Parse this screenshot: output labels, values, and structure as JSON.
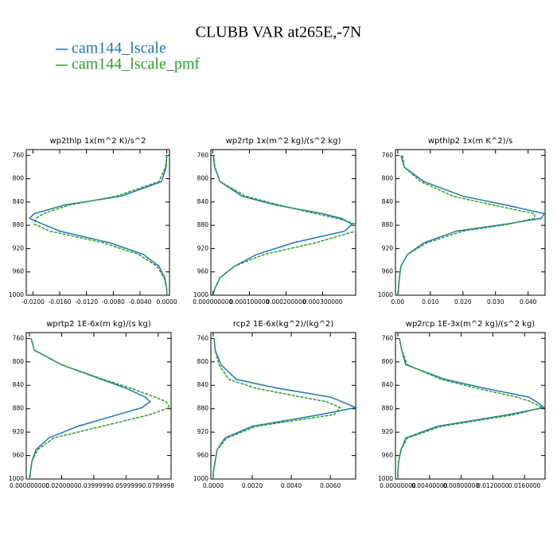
{
  "title": "CLUBB VAR at265E,-7N",
  "chart_data": [
    {
      "type": "line",
      "title": "wp2thlp  1x(m^2 K)/s^2",
      "y": [
        760,
        780,
        805,
        830,
        845,
        860,
        868,
        878,
        890,
        910,
        930,
        950,
        970,
        990,
        1000
      ],
      "series": [
        {
          "name": "cam144_lscale",
          "color": "#1f77b4",
          "values": [
            0,
            -0.0001,
            -0.0008,
            -0.0068,
            -0.0152,
            -0.0198,
            -0.0205,
            -0.0185,
            -0.016,
            -0.0085,
            -0.0035,
            -0.0012,
            -0.0003,
            0,
            0
          ]
        },
        {
          "name": "cam144_lscale_pmf",
          "color": "#2ca02c",
          "values": [
            0,
            -0.0002,
            -0.0012,
            -0.0075,
            -0.0145,
            -0.0185,
            -0.0195,
            -0.0198,
            -0.0175,
            -0.0095,
            -0.0042,
            -0.0015,
            -0.0004,
            0,
            0
          ]
        }
      ],
      "xlim": [
        -0.021,
        0.0004
      ],
      "xticks": [
        {
          "value": -0.02,
          "label": "-0.0200"
        },
        {
          "value": -0.016,
          "label": "-0.0160"
        },
        {
          "value": -0.012,
          "label": "-0.0120"
        },
        {
          "value": -0.008,
          "label": "-0.0080"
        },
        {
          "value": -0.004,
          "label": "-0.0040"
        },
        {
          "value": 0,
          "label": "0.0000"
        }
      ],
      "ylim": [
        1000,
        750
      ],
      "yticks": [
        760,
        800,
        840,
        880,
        920,
        960,
        1000
      ]
    },
    {
      "type": "line",
      "title": "wp2rtp  1x(m^2 kg)/(s^2 kg)",
      "y": [
        760,
        780,
        805,
        830,
        845,
        860,
        868,
        878,
        890,
        910,
        930,
        950,
        970,
        990,
        1000
      ],
      "series": [
        {
          "name": "cam144_lscale",
          "color": "#1f77b4",
          "values": [
            2e-06,
            5e-06,
            2e-05,
            8e-05,
            0.00017,
            0.0003,
            0.00035,
            0.00038,
            0.00036,
            0.00022,
            0.00012,
            6e-05,
            2e-05,
            5e-06,
            1e-06
          ]
        },
        {
          "name": "cam144_lscale_pmf",
          "color": "#2ca02c",
          "values": [
            2e-06,
            6e-06,
            2e-05,
            9e-05,
            0.00018,
            0.00028,
            0.00034,
            0.00039,
            0.00039,
            0.00028,
            0.00014,
            6e-05,
            2e-05,
            5e-06,
            1e-06
          ]
        }
      ],
      "xlim": [
        -5e-06,
        0.00039
      ],
      "xticks": [
        {
          "value": 0,
          "label": "0.000000000"
        },
        {
          "value": 0.0001,
          "label": "0.000100000"
        },
        {
          "value": 0.0002,
          "label": "0.000200000"
        },
        {
          "value": 0.0003,
          "label": "0.000300000"
        }
      ],
      "ylim": [
        1000,
        750
      ],
      "yticks": [
        760,
        800,
        840,
        880,
        920,
        960,
        1000
      ]
    },
    {
      "type": "line",
      "title": "wpthlp2  1x(m K^2)/s",
      "y": [
        760,
        780,
        805,
        830,
        845,
        860,
        868,
        878,
        890,
        910,
        930,
        950,
        970,
        990,
        1000
      ],
      "series": [
        {
          "name": "cam144_lscale",
          "color": "#1f77b4",
          "values": [
            0.001,
            0.002,
            0.008,
            0.02,
            0.033,
            0.045,
            0.044,
            0.033,
            0.018,
            0.008,
            0.003,
            0.001,
            0.0005,
            0.0002,
            0.0001
          ]
        },
        {
          "name": "cam144_lscale_pmf",
          "color": "#2ca02c",
          "values": [
            0.0015,
            0.002,
            0.007,
            0.017,
            0.029,
            0.042,
            0.042,
            0.034,
            0.02,
            0.009,
            0.003,
            0.001,
            0.0005,
            0.0002,
            0.0001
          ]
        }
      ],
      "xlim": [
        -0.0007,
        0.0452
      ],
      "xticks": [
        {
          "value": 0,
          "label": "0.00"
        },
        {
          "value": 0.01,
          "label": "0.010"
        },
        {
          "value": 0.02,
          "label": "0.020"
        },
        {
          "value": 0.03,
          "label": "0.030"
        },
        {
          "value": 0.04,
          "label": "0.040"
        }
      ],
      "ylim": [
        1000,
        750
      ],
      "yticks": [
        760,
        800,
        840,
        880,
        920,
        960,
        1000
      ]
    },
    {
      "type": "line",
      "title": "wprtp2  1E-6x(m kg)/(s kg)",
      "y": [
        760,
        780,
        805,
        830,
        845,
        860,
        868,
        878,
        890,
        910,
        930,
        950,
        970,
        990,
        1000
      ],
      "series": [
        {
          "name": "cam144_lscale",
          "color": "#1f77b4",
          "values": [
            0.001,
            0.003,
            0.02,
            0.045,
            0.06,
            0.072,
            0.075,
            0.07,
            0.055,
            0.03,
            0.012,
            0.004,
            0.0015,
            0.0005,
            0.0001
          ]
        },
        {
          "name": "cam144_lscale_pmf",
          "color": "#2ca02c",
          "values": [
            0.001,
            0.003,
            0.02,
            0.046,
            0.063,
            0.078,
            0.085,
            0.087,
            0.075,
            0.045,
            0.015,
            0.005,
            0.0015,
            0.0005,
            0.0001
          ]
        }
      ],
      "xlim": [
        -0.002,
        0.088
      ],
      "xticks": [
        {
          "value": 0,
          "label": "0.000000000"
        },
        {
          "value": 0.02,
          "label": "0.0200000"
        },
        {
          "value": 0.04,
          "label": "0.0399999"
        },
        {
          "value": 0.06,
          "label": "0.0599999"
        },
        {
          "value": 0.08,
          "label": "0.0799998"
        }
      ],
      "ylim": [
        1000,
        750
      ],
      "yticks": [
        760,
        800,
        840,
        880,
        920,
        960,
        1000
      ]
    },
    {
      "type": "line",
      "title": "rcp2  1E-6x(kg^2)/(kg^2)",
      "y": [
        760,
        780,
        805,
        830,
        845,
        860,
        868,
        878,
        890,
        910,
        930,
        950,
        970,
        990,
        1000
      ],
      "series": [
        {
          "name": "cam144_lscale",
          "color": "#1f77b4",
          "values": [
            5e-05,
            0.0001,
            0.0004,
            0.0012,
            0.0033,
            0.006,
            0.0066,
            0.0073,
            0.0055,
            0.002,
            0.0006,
            0.0002,
            0.0001,
            0,
            0
          ]
        },
        {
          "name": "cam144_lscale_pmf",
          "color": "#2ca02c",
          "values": [
            5e-05,
            0.0001,
            0.0003,
            0.0008,
            0.0022,
            0.0045,
            0.0058,
            0.0065,
            0.0062,
            0.0022,
            0.0007,
            0.0002,
            0.0001,
            0,
            0
          ]
        }
      ],
      "xlim": [
        -0.00012,
        0.0073
      ],
      "xticks": [
        {
          "value": 0,
          "label": "0.0000"
        },
        {
          "value": 0.002,
          "label": "0.0020"
        },
        {
          "value": 0.004,
          "label": "0.0040"
        },
        {
          "value": 0.006,
          "label": "0.0060"
        }
      ],
      "ylim": [
        1000,
        750
      ],
      "yticks": [
        760,
        800,
        840,
        880,
        920,
        960,
        1000
      ]
    },
    {
      "type": "line",
      "title": "wp2rcp  1E-3x(m^2 kg)/(s^2 kg)",
      "y": [
        760,
        780,
        805,
        830,
        845,
        860,
        868,
        878,
        890,
        910,
        930,
        950,
        970,
        990,
        1000
      ],
      "series": [
        {
          "name": "cam144_lscale",
          "color": "#1f77b4",
          "values": [
            0.0002,
            0.0005,
            0.001,
            0.006,
            0.011,
            0.0165,
            0.0175,
            0.0185,
            0.014,
            0.005,
            0.001,
            0.0004,
            0.0001,
            0,
            0
          ]
        },
        {
          "name": "cam144_lscale_pmf",
          "color": "#2ca02c",
          "values": [
            0.0002,
            0.0005,
            0.0012,
            0.0055,
            0.01,
            0.015,
            0.0168,
            0.0182,
            0.0148,
            0.0055,
            0.0012,
            0.0004,
            0.0001,
            0,
            0
          ]
        }
      ],
      "xlim": [
        -0.0003,
        0.0186
      ],
      "xticks": [
        {
          "value": 0,
          "label": "0.00000000"
        },
        {
          "value": 0.004,
          "label": "0.00400000"
        },
        {
          "value": 0.008,
          "label": "0.00800000"
        },
        {
          "value": 0.012,
          "label": "0.0120000"
        },
        {
          "value": 0.016,
          "label": "0.0160000"
        }
      ],
      "ylim": [
        1000,
        750
      ],
      "yticks": [
        760,
        800,
        840,
        880,
        920,
        960,
        1000
      ]
    }
  ]
}
